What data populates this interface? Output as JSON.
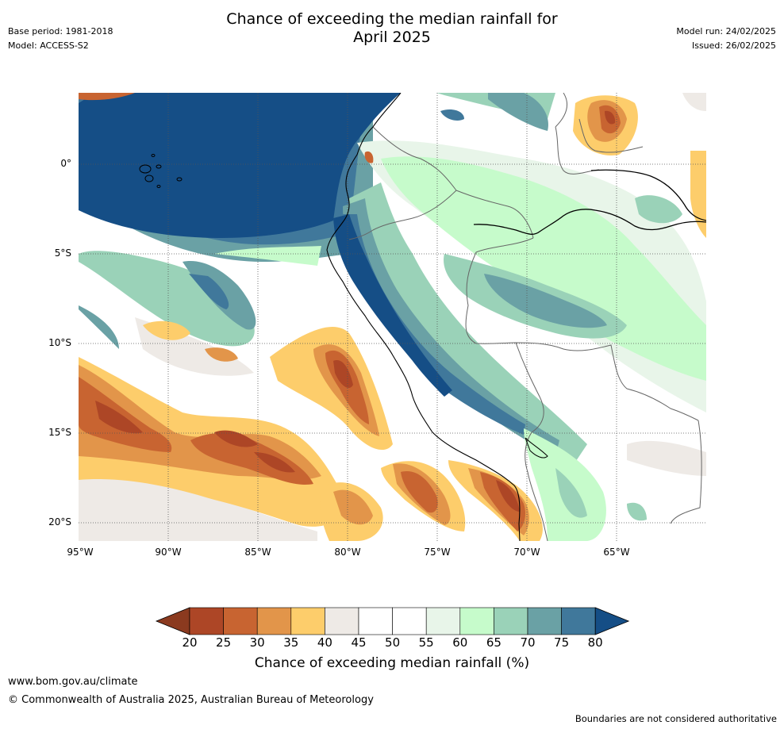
{
  "header": {
    "title_line1": "Chance of exceeding the median rainfall for",
    "title_line2": "April 2025",
    "base_period": "Base period: 1981-2018",
    "model": "Model: ACCESS-S2",
    "model_run": "Model run: 24/02/2025",
    "issued": "Issued: 26/02/2025"
  },
  "map": {
    "lat_labels": [
      "0°",
      "5°S",
      "10°S",
      "15°S",
      "20°S"
    ],
    "lon_labels": [
      "95°W",
      "90°W",
      "85°W",
      "80°W",
      "75°W",
      "70°W",
      "65°W"
    ],
    "land_color": "#ffffff",
    "gridline_style": "dotted"
  },
  "colorbar": {
    "ticks": [
      "20",
      "25",
      "30",
      "35",
      "40",
      "45",
      "50",
      "55",
      "60",
      "65",
      "70",
      "75",
      "80"
    ],
    "colors": [
      "#8b3a1f",
      "#ad4626",
      "#c86431",
      "#e2954a",
      "#fdcd6b",
      "#eeeae6",
      "#ffffff",
      "#ffffff",
      "#e8f5e9",
      "#c6fbcb",
      "#9ad2b8",
      "#6aa1a5",
      "#40789b",
      "#154e86"
    ],
    "label": "Chance of exceeding median rainfall (%)"
  },
  "footer": {
    "url": "www.bom.gov.au/climate",
    "copyright": "© Commonwealth of Australia 2025, Australian Bureau of Meteorology",
    "disclaimer": "Boundaries are not considered authoritative"
  }
}
